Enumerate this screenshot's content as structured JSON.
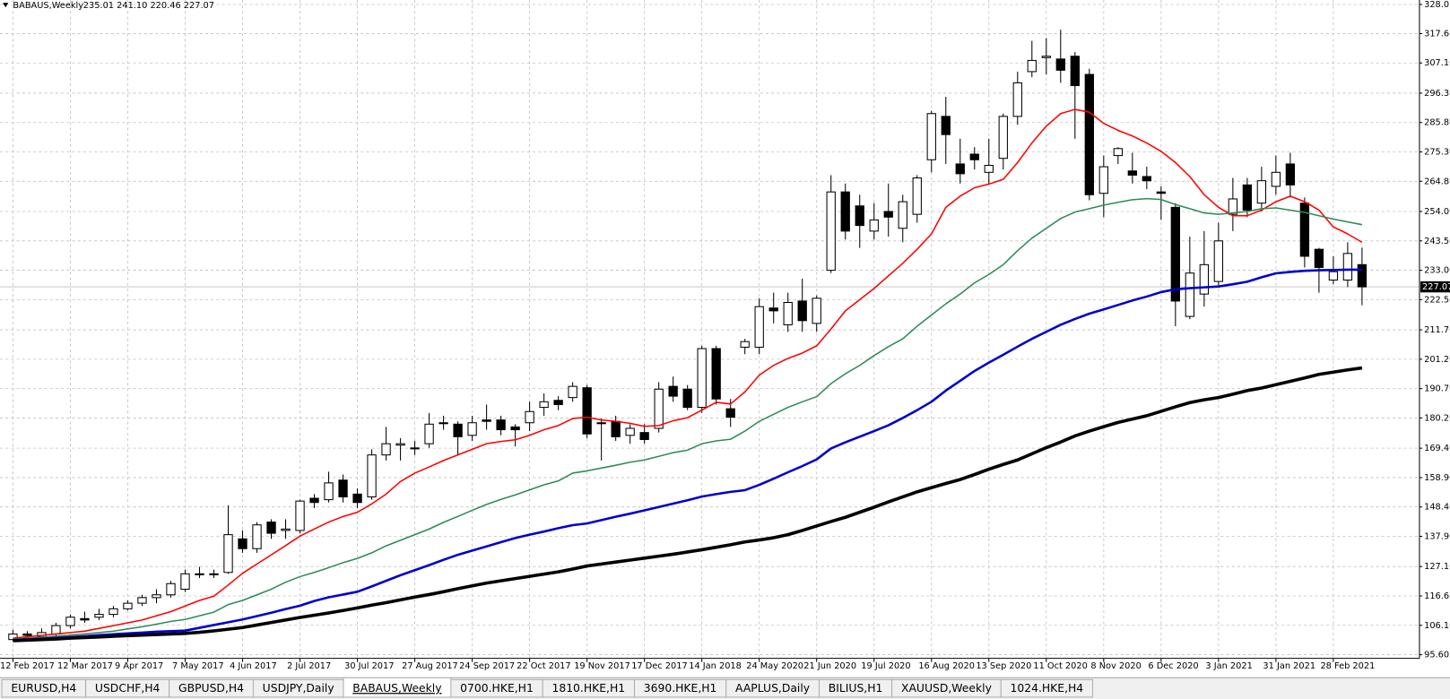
{
  "header": {
    "symbol": "BABAUS,Weekly",
    "ohlc": "235.01 241.10 220.46 227.07"
  },
  "chart_data": {
    "type": "candlestick",
    "categories": [
      "12 Feb 2017",
      null,
      null,
      null,
      "12 Mar 2017",
      null,
      null,
      null,
      "9 Apr 2017",
      null,
      null,
      null,
      "7 May 2017",
      null,
      null,
      null,
      "4 Jun 2017",
      null,
      null,
      null,
      "2 Jul 2017",
      null,
      null,
      null,
      "30 Jul 2017",
      null,
      null,
      null,
      "27 Aug 2017",
      null,
      null,
      null,
      "24 Sep 2017",
      null,
      null,
      null,
      "22 Oct 2017",
      null,
      null,
      null,
      "19 Nov 2017",
      null,
      null,
      null,
      "17 Dec 2017",
      null,
      null,
      null,
      "14 Jan 2018",
      null,
      null,
      null,
      "24 May 2020",
      null,
      null,
      null,
      "21 Jun 2020",
      null,
      null,
      null,
      "19 Jul 2020",
      null,
      null,
      null,
      "16 Aug 2020",
      null,
      null,
      null,
      "13 Sep 2020",
      null,
      null,
      null,
      "11 Oct 2020",
      null,
      null,
      null,
      "8 Nov 2020",
      null,
      null,
      null,
      "6 Dec 2020",
      null,
      null,
      null,
      "3 Jan 2021",
      null,
      null,
      null,
      "31 Jan 2021",
      null,
      null,
      null,
      "28 Feb 2021",
      null,
      null
    ],
    "open": [
      101,
      103,
      102,
      103,
      106,
      108.5,
      109,
      110,
      112,
      114,
      116,
      117,
      119,
      124.5,
      124.5,
      125,
      137,
      133.5,
      143,
      140,
      140,
      151.5,
      151,
      158,
      153,
      152,
      167,
      170.5,
      169.5,
      171,
      178.5,
      178,
      174,
      179.5,
      179.5,
      177,
      178.5,
      184,
      186.5,
      187.5,
      191,
      178.5,
      179,
      174,
      175,
      176.5,
      191.5,
      190.5,
      184,
      205,
      183.5,
      205.5,
      205.5,
      219.5,
      213.5,
      222,
      214,
      233,
      261,
      256,
      247,
      254,
      248,
      253,
      272.5,
      288,
      271,
      274.5,
      268,
      273,
      288,
      304,
      309,
      308.5,
      309.5,
      303,
      260.5,
      274,
      268.5,
      266.5,
      261,
      255.5,
      216.5,
      224.5,
      229,
      253,
      263.5,
      257,
      263,
      271,
      257,
      240.5,
      229.5,
      229.5,
      235.01
    ],
    "high": [
      104.5,
      104,
      105,
      107,
      110,
      111,
      112,
      113,
      115,
      117,
      119,
      122,
      126,
      127,
      126,
      149,
      140,
      143,
      144,
      144,
      151,
      153,
      161,
      160,
      155,
      169,
      177,
      173,
      172,
      182,
      181,
      179,
      181,
      185,
      181,
      178,
      186,
      189,
      188,
      193,
      192,
      180,
      181,
      178,
      178,
      193,
      195,
      192,
      206,
      206,
      187,
      208.5,
      223,
      225,
      225,
      230,
      224,
      267,
      264,
      260,
      257,
      264,
      260,
      267,
      290,
      295,
      280,
      277,
      280,
      289,
      304,
      315,
      316,
      319,
      311,
      305,
      274,
      277,
      275,
      270,
      263,
      257,
      245,
      247,
      250,
      266,
      266,
      270,
      274,
      275,
      259,
      241,
      238,
      243,
      241.1
    ],
    "low": [
      100.5,
      101,
      101.5,
      102,
      105,
      107,
      108,
      109,
      111.5,
      113,
      114,
      116,
      118,
      123,
      123,
      124.5,
      132,
      132,
      137,
      137,
      139,
      148,
      150,
      150,
      148,
      151,
      165,
      165,
      167,
      169.5,
      176,
      167,
      172,
      176,
      174,
      170,
      175.5,
      181,
      183,
      186,
      173,
      165,
      172,
      171,
      171,
      175,
      186,
      183,
      182,
      185,
      177,
      203,
      203,
      214,
      211,
      211,
      211,
      232,
      244,
      241,
      244,
      245,
      243,
      250,
      268,
      271,
      264,
      269,
      264,
      269,
      285,
      302,
      303,
      300,
      280,
      258,
      252,
      271,
      264,
      262,
      251,
      213,
      215.5,
      220,
      227,
      247,
      252,
      254,
      260,
      259,
      234,
      225,
      228,
      227,
      220.46
    ],
    "close": [
      103,
      102.5,
      103.5,
      106,
      109,
      108,
      110,
      112,
      114,
      116,
      117,
      121,
      124.5,
      124.5,
      124.5,
      138.5,
      133.5,
      142,
      139,
      140.5,
      150.5,
      150,
      157,
      152,
      150,
      167,
      171,
      171,
      169.5,
      178,
      178.5,
      173.5,
      178.5,
      179,
      176,
      176,
      182.5,
      186,
      185,
      191.5,
      174.5,
      178.5,
      173.5,
      176.5,
      172.5,
      190.5,
      188,
      184,
      205,
      187,
      180.5,
      207.5,
      220,
      218.5,
      221.5,
      215,
      223,
      261,
      247,
      249,
      251,
      252,
      257.5,
      266,
      289,
      281.5,
      267.5,
      272.5,
      270.5,
      288,
      300,
      308,
      309.5,
      304.5,
      299,
      260,
      270,
      276.5,
      267,
      265,
      260.5,
      222,
      232,
      235,
      243.5,
      258.5,
      254.5,
      265,
      268,
      263.5,
      238,
      234,
      232.5,
      239,
      227.07
    ],
    "up_color": "#ffffff",
    "down_color": "#000000",
    "series": [
      {
        "color": "#ff0000",
        "line_width": 1.5,
        "values": [
          101.5,
          102,
          102.5,
          103,
          103.5,
          104,
          105,
          106,
          107,
          108,
          109.5,
          111,
          113,
          115,
          116.5,
          120.5,
          124.7,
          128,
          131.3,
          134.6,
          138,
          140.5,
          143,
          145,
          146.5,
          149.5,
          153,
          157.5,
          160.5,
          162.7,
          165,
          167,
          169,
          171,
          171.8,
          172.4,
          174,
          176,
          177.5,
          180,
          180.5,
          179.5,
          179,
          178.3,
          177.2,
          177.5,
          179.2,
          180.3,
          183,
          185.8,
          185.2,
          189.5,
          195.5,
          199,
          201.5,
          203.4,
          206,
          212,
          218.5,
          222.5,
          226.5,
          231,
          235.5,
          240.5,
          246,
          255.5,
          259.5,
          262.5,
          263.8,
          265.5,
          271.5,
          278.5,
          284.5,
          289,
          290.5,
          289.5,
          285.5,
          283,
          281,
          278.5,
          275.5,
          271.5,
          266.5,
          260,
          255.5,
          252.5,
          252.5,
          254.5,
          257.5,
          259.5,
          257.5,
          254.5,
          248.5,
          246,
          243
        ]
      },
      {
        "color": "#2e8b57",
        "line_width": 1.5,
        "values": [
          101.2,
          101.5,
          101.8,
          102.2,
          102.6,
          103,
          103.5,
          104,
          104.8,
          105.6,
          106.5,
          107.5,
          108.2,
          109.5,
          110.8,
          113.5,
          115,
          117,
          119,
          121.5,
          123.5,
          125,
          126.7,
          128.5,
          130,
          132,
          134.5,
          136.5,
          138.5,
          140.5,
          142.9,
          145,
          147.2,
          149.3,
          151.1,
          152.7,
          154.5,
          156.3,
          157.7,
          160.5,
          161.3,
          162.3,
          163.3,
          164.4,
          165.2,
          166.5,
          167.8,
          168.7,
          171,
          172,
          172.6,
          175.5,
          179,
          181.5,
          184,
          186,
          187.8,
          192.5,
          196,
          199,
          202.5,
          205.7,
          208.5,
          213,
          217,
          221,
          224.5,
          228.5,
          231.5,
          235,
          240,
          244.5,
          248,
          251.5,
          253.8,
          255,
          256.3,
          257.3,
          258.2,
          258.6,
          258.3,
          256.5,
          255,
          253.5,
          253,
          253.5,
          254,
          255,
          255.3,
          254.5,
          253.7,
          252.5,
          251.3,
          250.3,
          249.3
        ]
      },
      {
        "color": "#0000cd",
        "line_width": 2.5,
        "values": [
          100.9,
          101.1,
          101.3,
          101.6,
          101.9,
          102.2,
          102.6,
          102.9,
          103.2,
          103.5,
          103.8,
          104,
          104.2,
          105.2,
          106.2,
          107.2,
          108.2,
          109.4,
          110.6,
          111.9,
          113.1,
          114.8,
          116.1,
          117.1,
          118.1,
          120,
          122,
          124,
          125.8,
          127.6,
          129.5,
          131.3,
          132.8,
          134.3,
          135.8,
          137.3,
          138.5,
          139.6,
          140.8,
          141.9,
          142.5,
          143.7,
          144.9,
          146,
          147.2,
          148.4,
          149.6,
          150.8,
          152.1,
          153,
          153.8,
          154.4,
          156.3,
          158.5,
          160.8,
          163,
          165.4,
          169.3,
          171.5,
          173.5,
          175.5,
          177.6,
          180.2,
          183,
          186,
          190,
          193.5,
          197,
          200,
          202.8,
          205.7,
          208.5,
          211,
          213.5,
          215.6,
          217.5,
          219,
          220.6,
          222.2,
          223.6,
          225.2,
          226.2,
          226.6,
          226.9,
          227.2,
          228,
          228.9,
          230.5,
          231.9,
          232.4,
          232.8,
          233,
          233.1,
          233.2,
          233.2
        ]
      },
      {
        "color": "#000000",
        "line_width": 3.5,
        "values": [
          100.6,
          100.8,
          101,
          101.2,
          101.5,
          101.7,
          101.9,
          102.2,
          102.4,
          102.6,
          102.8,
          103,
          103.2,
          103.6,
          104.1,
          104.7,
          105.3,
          106.2,
          107.1,
          108,
          108.9,
          109.7,
          110.5,
          111.4,
          112.3,
          113.3,
          114.2,
          115.2,
          116.2,
          117.1,
          118.1,
          119.2,
          120.2,
          121.2,
          122,
          122.8,
          123.6,
          124.4,
          125.2,
          126.2,
          127.3,
          128,
          128.7,
          129.4,
          130.1,
          130.8,
          131.5,
          132.3,
          133.1,
          134,
          134.9,
          135.9,
          136.6,
          137.4,
          138.5,
          140,
          141.6,
          143.2,
          144.7,
          146.5,
          148.3,
          150.2,
          152,
          153.8,
          155.3,
          156.8,
          158.2,
          160,
          161.9,
          163.6,
          165.2,
          167.4,
          169.6,
          171.6,
          173.8,
          175.5,
          177.1,
          178.6,
          179.8,
          181,
          182.6,
          184.2,
          185.7,
          186.7,
          187.5,
          188.7,
          190,
          190.9,
          192.1,
          193.3,
          194.5,
          195.8,
          196.6,
          197.4,
          198.1
        ]
      }
    ],
    "ylim": [
      94.3,
      329.6
    ],
    "yticks": [
      {
        "value": 328.0,
        "label": "328.0"
      },
      {
        "value": 317.6,
        "label": "317.60"
      },
      {
        "value": 307.1,
        "label": "307.10"
      },
      {
        "value": 296.3,
        "label": "296.30"
      },
      {
        "value": 285.8,
        "label": "285.80"
      },
      {
        "value": 275.3,
        "label": "275.30"
      },
      {
        "value": 264.8,
        "label": "264.80"
      },
      {
        "value": 254,
        "label": "254.00"
      },
      {
        "value": 243.5,
        "label": "243.50"
      },
      {
        "value": 233,
        "label": "233.00"
      },
      {
        "value": 222.5,
        "label": "222.50"
      },
      {
        "value": 211.7,
        "label": "211.70"
      },
      {
        "value": 201.2,
        "label": "201.20"
      },
      {
        "value": 190.7,
        "label": "190.70"
      },
      {
        "value": 180.2,
        "label": "180.20"
      },
      {
        "value": 169.4,
        "label": "169.40"
      },
      {
        "value": 158.9,
        "label": "158.90"
      },
      {
        "value": 148.4,
        "label": "148.40"
      },
      {
        "value": 137.9,
        "label": "137.90"
      },
      {
        "value": 127.1,
        "label": "127.10"
      },
      {
        "value": 116.6,
        "label": "116.60"
      },
      {
        "value": 106.1,
        "label": "106.10"
      },
      {
        "value": 95.6,
        "label": "95.60"
      }
    ],
    "last_price": 227.07,
    "grid": true
  },
  "tabs": [
    {
      "label": "EURUSD,H4",
      "active": false
    },
    {
      "label": "USDCHF,H4",
      "active": false
    },
    {
      "label": "GBPUSD,H4",
      "active": false
    },
    {
      "label": "USDJPY,Daily",
      "active": false
    },
    {
      "label": "BABAUS,Weekly",
      "active": true
    },
    {
      "label": "0700.HKE,H1",
      "active": false
    },
    {
      "label": "1810.HKE,H1",
      "active": false
    },
    {
      "label": "3690.HKE,H1",
      "active": false
    },
    {
      "label": "AAPLUS,Daily",
      "active": false
    },
    {
      "label": "BILIUS,H1",
      "active": false
    },
    {
      "label": "XAUUSD,Weekly",
      "active": false
    },
    {
      "label": "1024.HKE,H4",
      "active": false
    }
  ]
}
